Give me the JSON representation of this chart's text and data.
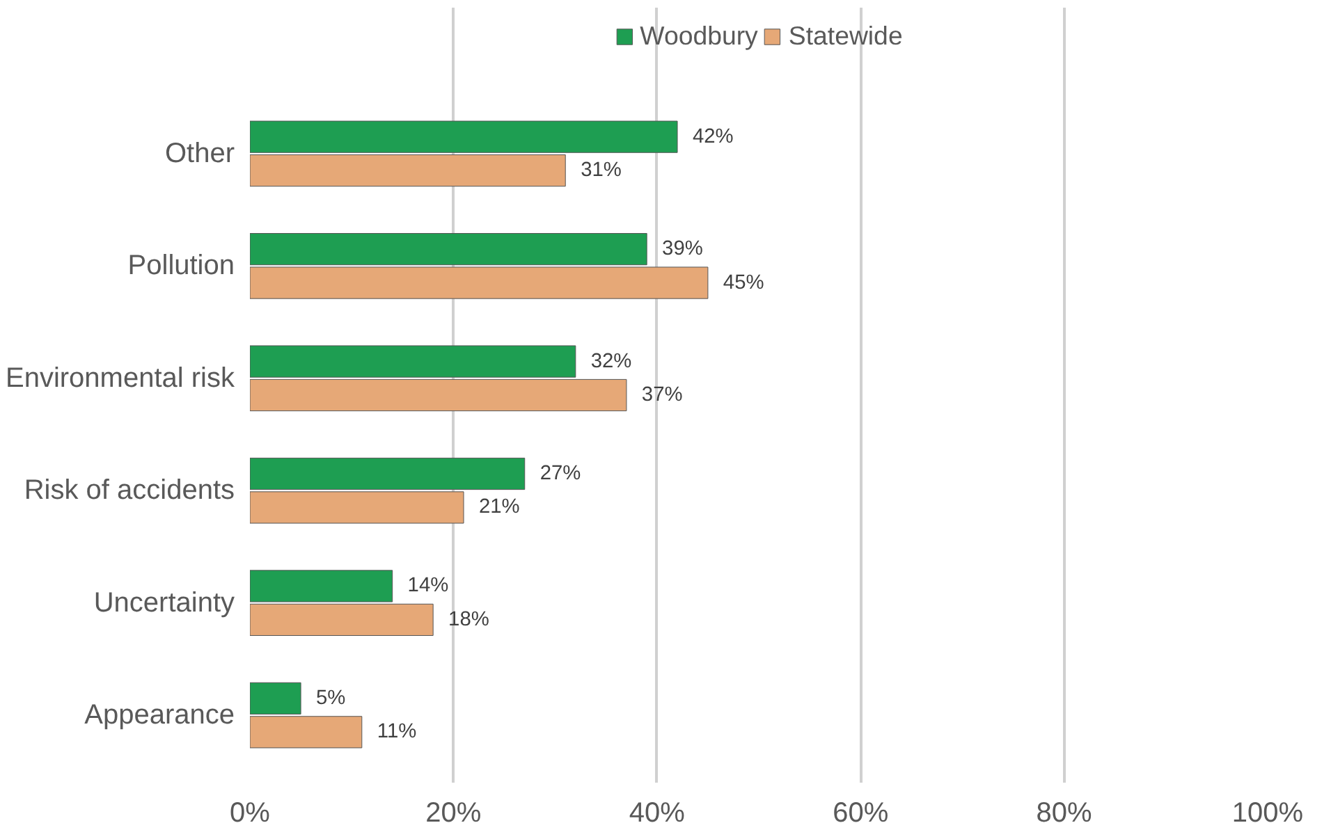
{
  "chart_data": {
    "type": "bar",
    "orientation": "horizontal",
    "categories": [
      "Other",
      "Pollution",
      "Environmental risk",
      "Risk of accidents",
      "Uncertainty",
      "Appearance"
    ],
    "series": [
      {
        "name": "Woodbury",
        "color": "#1e9e52",
        "values": [
          42,
          39,
          32,
          27,
          14,
          5
        ],
        "value_labels": [
          "42%",
          "39%",
          "32%",
          "27%",
          "14%",
          "5%"
        ]
      },
      {
        "name": "Statewide",
        "color": "#e6a877",
        "values": [
          31,
          45,
          37,
          21,
          18,
          11
        ],
        "value_labels": [
          "31%",
          "45%",
          "37%",
          "21%",
          "18%",
          "11%"
        ]
      }
    ],
    "xlim": [
      0,
      100
    ],
    "xticks": [
      {
        "value": 0,
        "label": "0%"
      },
      {
        "value": 20,
        "label": "20%"
      },
      {
        "value": 40,
        "label": "40%"
      },
      {
        "value": 60,
        "label": "60%"
      },
      {
        "value": 80,
        "label": "80%"
      },
      {
        "value": 100,
        "label": "100%"
      }
    ],
    "grid": "x",
    "legend": "top"
  }
}
